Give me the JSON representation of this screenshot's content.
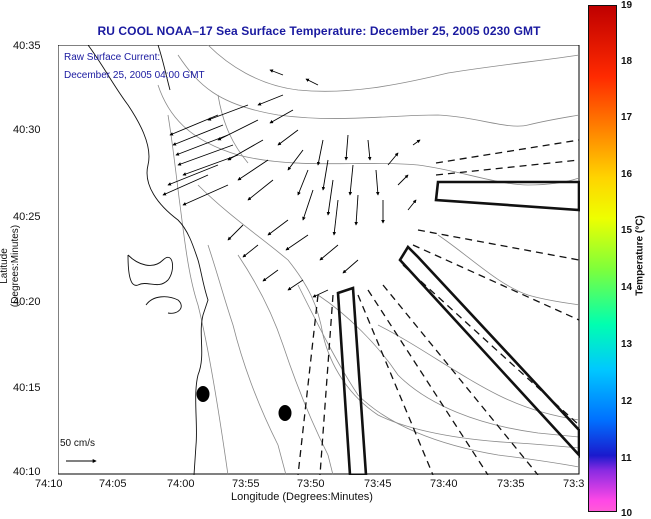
{
  "title": "RU COOL  NOAA–17  Sea Surface Temperature:  December 25, 2005 0230 GMT",
  "legend": {
    "line1": "Raw Surface Current:",
    "line2": "December 25, 2005 04:00 GMT"
  },
  "scale_label": "50 cm/s",
  "axes": {
    "ylabel": "Latitude (Degrees:Minutes)",
    "xlabel": "Longitude (Degrees:Minutes)",
    "yticks": [
      "40:35",
      "40:30",
      "40:25",
      "40:20",
      "40:15",
      "40:10"
    ],
    "xticks": [
      "74:10",
      "74:05",
      "74:00",
      "73:55",
      "73:50",
      "73:45",
      "73:40",
      "73:35",
      "73:3"
    ]
  },
  "colorbar": {
    "title": "Temperature (°C)",
    "ticks": [
      "19",
      "18",
      "17",
      "16",
      "15",
      "14",
      "13",
      "12",
      "11",
      "10"
    ]
  }
}
